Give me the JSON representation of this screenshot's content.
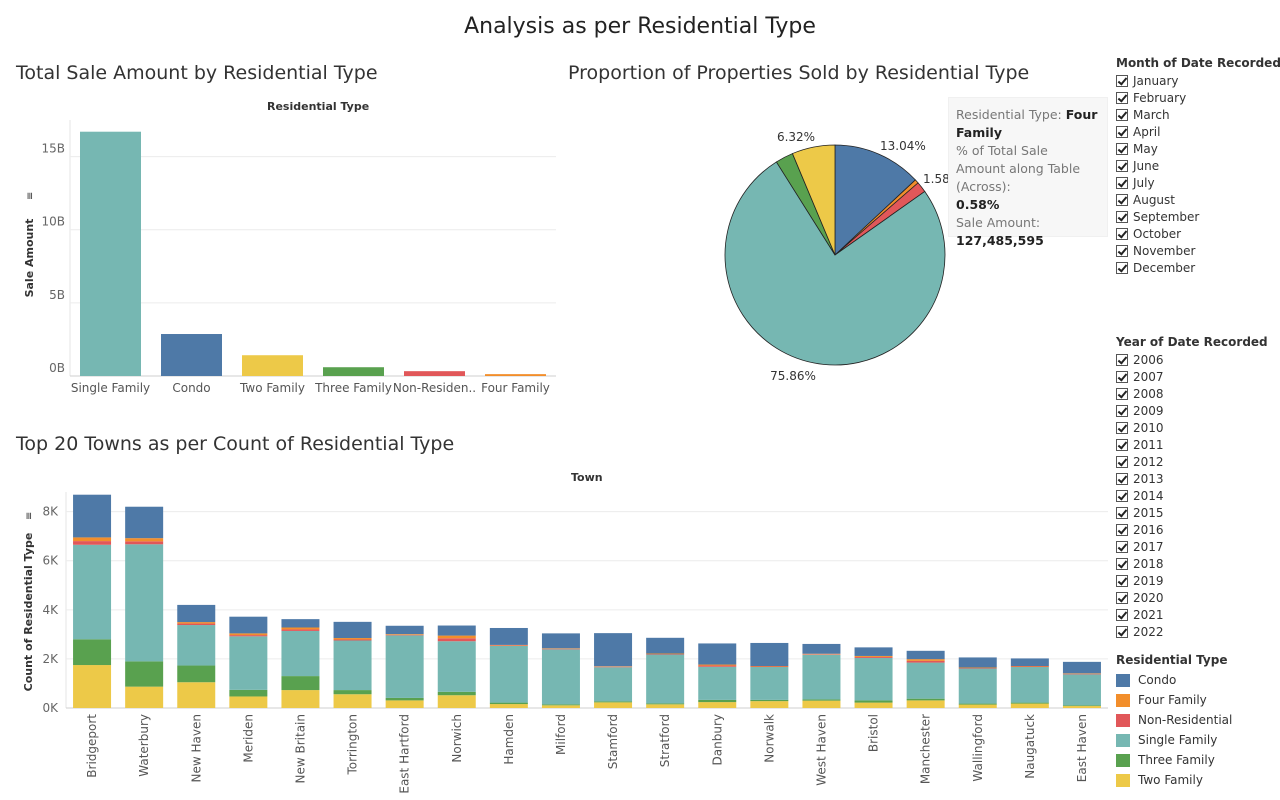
{
  "page_title": "Analysis as per Residential Type",
  "colors": {
    "Condo": "#4E79A7",
    "Four Family": "#F28E2B",
    "Non-Residential": "#E15759",
    "Single Family": "#76B7B2",
    "Three Family": "#59A14F",
    "Two Family": "#EDC948"
  },
  "chart_data": [
    {
      "type": "bar",
      "title": "Total Sale Amount by Residential Type",
      "xlabel": "Residential Type",
      "ylabel": "Sale Amount",
      "categories": [
        "Single Family",
        "Condo",
        "Two Family",
        "Three Family",
        "Non-Residen..",
        "Four Family"
      ],
      "category_keys": [
        "Single Family",
        "Condo",
        "Two Family",
        "Three Family",
        "Non-Residential",
        "Four Family"
      ],
      "values": [
        16700000000,
        2870000000,
        1420000000,
        600000000,
        330000000,
        127485595
      ],
      "yticks": [
        "0B",
        "5B",
        "10B",
        "15B"
      ],
      "ylim": [
        0,
        17500000000
      ]
    },
    {
      "type": "pie",
      "title": "Proportion of Properties Sold by Residential Type",
      "slices": [
        {
          "name": "Condo",
          "value": 13.04,
          "label": "13.04%"
        },
        {
          "name": "Four Family",
          "value": 0.58,
          "label": ""
        },
        {
          "name": "Non-Residential",
          "value": 1.58,
          "label": "1.58"
        },
        {
          "name": "Single Family",
          "value": 75.86,
          "label": "75.86%"
        },
        {
          "name": "Three Family",
          "value": 2.62,
          "label": ""
        },
        {
          "name": "Two Family",
          "value": 6.32,
          "label": "6.32%"
        }
      ],
      "tooltip": {
        "type_label": "Residential Type:",
        "type_value": "Four Family",
        "pct_label": "% of Total Sale Amount along Table (Across):",
        "pct_value": "0.58%",
        "amount_label": "Sale Amount:",
        "amount_value": "127,485,595"
      }
    },
    {
      "type": "bar",
      "stacked": true,
      "title": "Top 20 Towns as per Count of Residential Type",
      "xlabel": "Town",
      "ylabel": "Count of Residential Type",
      "yticks": [
        "0K",
        "2K",
        "4K",
        "6K",
        "8K"
      ],
      "ylim": [
        0,
        8800
      ],
      "categories": [
        "Bridgeport",
        "Waterbury",
        "New Haven",
        "Meriden",
        "New Britain",
        "Torrington",
        "East Hartford",
        "Norwich",
        "Hamden",
        "Milford",
        "Stamford",
        "Stratford",
        "Danbury",
        "Norwalk",
        "West Haven",
        "Bristol",
        "Manchester",
        "Wallingford",
        "Naugatuck",
        "East Haven"
      ],
      "series": [
        {
          "name": "Two Family",
          "values": [
            1750,
            870,
            1050,
            470,
            730,
            560,
            310,
            520,
            160,
            110,
            230,
            150,
            240,
            280,
            300,
            220,
            310,
            140,
            180,
            80
          ]
        },
        {
          "name": "Three Family",
          "values": [
            1050,
            1030,
            680,
            270,
            570,
            170,
            100,
            140,
            60,
            40,
            40,
            40,
            90,
            50,
            50,
            90,
            70,
            40,
            40,
            30
          ]
        },
        {
          "name": "Single Family",
          "values": [
            3850,
            4770,
            1650,
            2180,
            1840,
            2020,
            2550,
            2060,
            2310,
            2240,
            1390,
            1990,
            1350,
            1340,
            1820,
            1730,
            1470,
            1430,
            1450,
            1260
          ]
        },
        {
          "name": "Non-Residential",
          "values": [
            150,
            120,
            60,
            50,
            60,
            40,
            20,
            120,
            20,
            20,
            20,
            20,
            50,
            20,
            20,
            40,
            70,
            20,
            20,
            20
          ]
        },
        {
          "name": "Four Family",
          "values": [
            150,
            130,
            60,
            70,
            80,
            60,
            30,
            110,
            20,
            20,
            20,
            20,
            40,
            20,
            20,
            40,
            70,
            20,
            20,
            20
          ]
        },
        {
          "name": "Condo",
          "values": [
            1740,
            1280,
            700,
            680,
            340,
            660,
            340,
            410,
            690,
            610,
            1350,
            640,
            860,
            940,
            400,
            350,
            340,
            410,
            310,
            470
          ]
        }
      ]
    }
  ],
  "filters": {
    "month": {
      "title": "Month of Date Recorded",
      "options": [
        "January",
        "February",
        "March",
        "April",
        "May",
        "June",
        "July",
        "August",
        "September",
        "October",
        "November",
        "December"
      ]
    },
    "year": {
      "title": "Year of Date Recorded",
      "options": [
        "2006",
        "2007",
        "2008",
        "2009",
        "2010",
        "2011",
        "2012",
        "2013",
        "2014",
        "2015",
        "2016",
        "2017",
        "2018",
        "2019",
        "2020",
        "2021",
        "2022"
      ]
    }
  },
  "legend": {
    "title": "Residential Type",
    "items": [
      "Condo",
      "Four Family",
      "Non-Residential",
      "Single Family",
      "Three Family",
      "Two Family"
    ]
  }
}
